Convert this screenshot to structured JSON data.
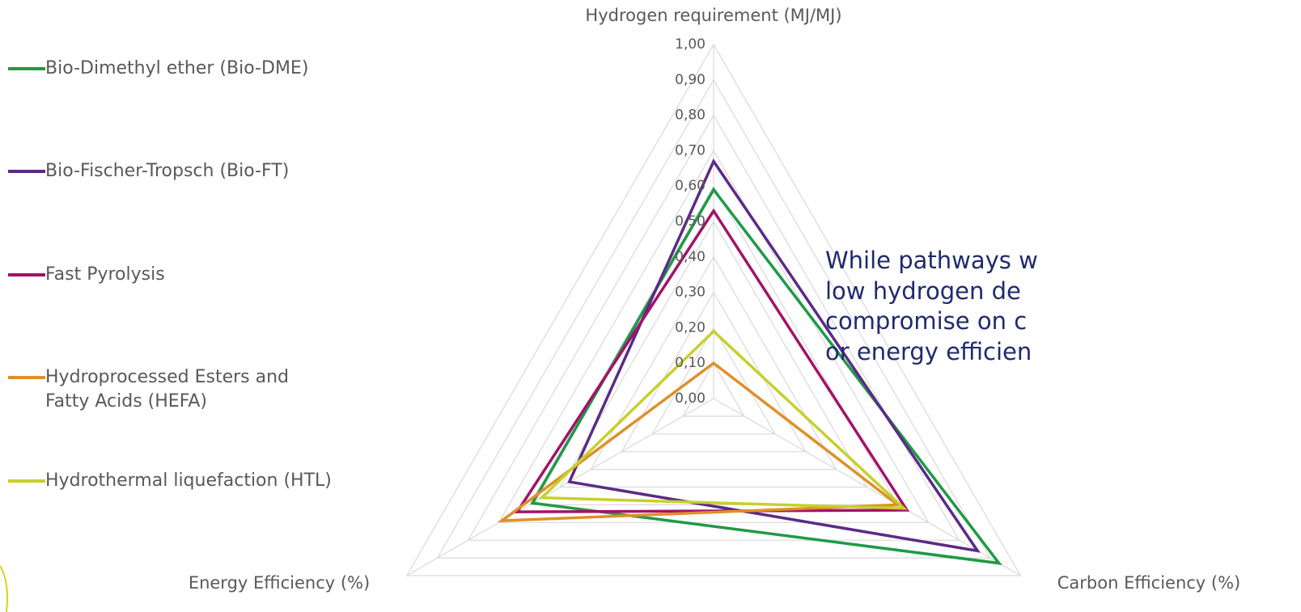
{
  "chart_data": {
    "type": "radar",
    "categories": [
      "Hydrogen requirement (MJ/MJ)",
      "Carbon Efficiency (%)",
      "Energy Efficiency (%)"
    ],
    "series": [
      {
        "name": "Bio-Dimethyl ether (Bio-DME)",
        "color": "#1e9a45",
        "values": [
          0.59,
          0.93,
          0.59
        ]
      },
      {
        "name": "Bio-Fischer-Tropsch (Bio-FT)",
        "color": "#5b2a86",
        "values": [
          0.67,
          0.86,
          0.47
        ]
      },
      {
        "name": "Fast Pyrolysis",
        "color": "#a3126b",
        "values": [
          0.53,
          0.63,
          0.64
        ]
      },
      {
        "name": "Hydroprocessed Esters and Fatty Acids (HEFA)",
        "color": "#de9028",
        "values": [
          0.1,
          0.6,
          0.69
        ]
      },
      {
        "name": "Hydrothermal liquefaction (HTL)",
        "color": "#c8cf2c",
        "values": [
          0.19,
          0.62,
          0.56
        ]
      }
    ],
    "ylim": [
      0,
      1
    ],
    "yticks": [
      {
        "value": 0,
        "label": "0,00"
      },
      {
        "value": 0.1,
        "label": "0,10"
      },
      {
        "value": 0.2,
        "label": "0,20"
      },
      {
        "value": 0.3,
        "label": "0,30"
      },
      {
        "value": 0.4,
        "label": "0,40"
      },
      {
        "value": 0.5,
        "label": "0,50"
      },
      {
        "value": 0.6,
        "label": "0,60"
      },
      {
        "value": 0.7,
        "label": "0,70"
      },
      {
        "value": 0.8,
        "label": "0,80"
      },
      {
        "value": 0.9,
        "label": "0,90"
      },
      {
        "value": 1,
        "label": "1,00"
      }
    ],
    "grid": true,
    "legend": "left",
    "annotation": [
      "While pathways w",
      "low hydrogen de",
      "compromise on c",
      "or energy efficien"
    ]
  }
}
